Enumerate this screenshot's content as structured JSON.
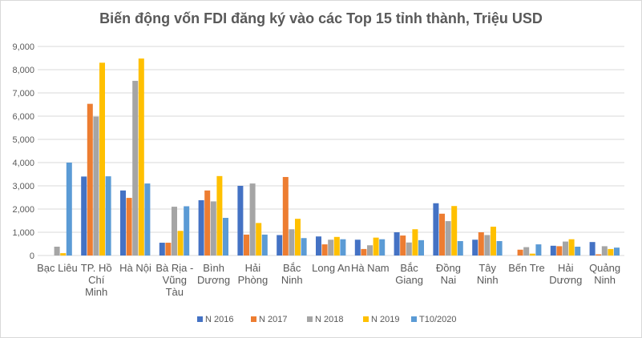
{
  "chart_data": {
    "type": "bar",
    "title": "Biến động vốn FDI đăng ký vào các Top 15 tỉnh thành, Triệu USD",
    "xlabel": "",
    "ylabel": "",
    "ylim": [
      0,
      9000
    ],
    "yticks": [
      "0",
      "1,000",
      "2,000",
      "3,000",
      "4,000",
      "5,000",
      "6,000",
      "7,000",
      "8,000",
      "9,000"
    ],
    "grid": true,
    "legend_position": "bottom",
    "categories": [
      [
        "Bạc Liêu"
      ],
      [
        "TP. Hồ",
        "Chí",
        "Minh"
      ],
      [
        "Hà Nội"
      ],
      [
        "Bà Rịa -",
        "Vũng",
        "Tàu"
      ],
      [
        "Bình",
        "Dương"
      ],
      [
        "Hải",
        "Phòng"
      ],
      [
        "Bắc",
        "Ninh"
      ],
      [
        "Long An"
      ],
      [
        "Hà Nam"
      ],
      [
        "Bắc",
        "Giang"
      ],
      [
        "Đồng",
        "Nai"
      ],
      [
        "Tây",
        "Ninh"
      ],
      [
        "Bến Tre"
      ],
      [
        "Hải",
        "Dương"
      ],
      [
        "Quảng",
        "Ninh"
      ]
    ],
    "series": [
      {
        "name": "N 2016",
        "color": "#4472c4",
        "values": [
          0,
          3400,
          2800,
          550,
          2380,
          3000,
          880,
          820,
          680,
          1000,
          2250,
          680,
          0,
          420,
          580
        ]
      },
      {
        "name": "N 2017",
        "color": "#ed7d31",
        "values": [
          0,
          6530,
          2480,
          550,
          2800,
          900,
          3380,
          480,
          280,
          860,
          1800,
          1000,
          250,
          400,
          50
        ]
      },
      {
        "name": "N 2018",
        "color": "#a5a5a5",
        "values": [
          380,
          5980,
          7520,
          2100,
          2330,
          3100,
          1130,
          680,
          440,
          560,
          1480,
          880,
          360,
          600,
          400
        ]
      },
      {
        "name": "N 2019",
        "color": "#ffc000",
        "values": [
          100,
          8300,
          8480,
          1060,
          3420,
          1400,
          1580,
          800,
          770,
          1130,
          2130,
          1240,
          80,
          700,
          280
        ]
      },
      {
        "name": "T10/2020",
        "color": "#5b9bd5",
        "values": [
          4000,
          3410,
          3100,
          2120,
          1620,
          900,
          750,
          700,
          700,
          660,
          620,
          620,
          480,
          380,
          340
        ]
      }
    ]
  }
}
